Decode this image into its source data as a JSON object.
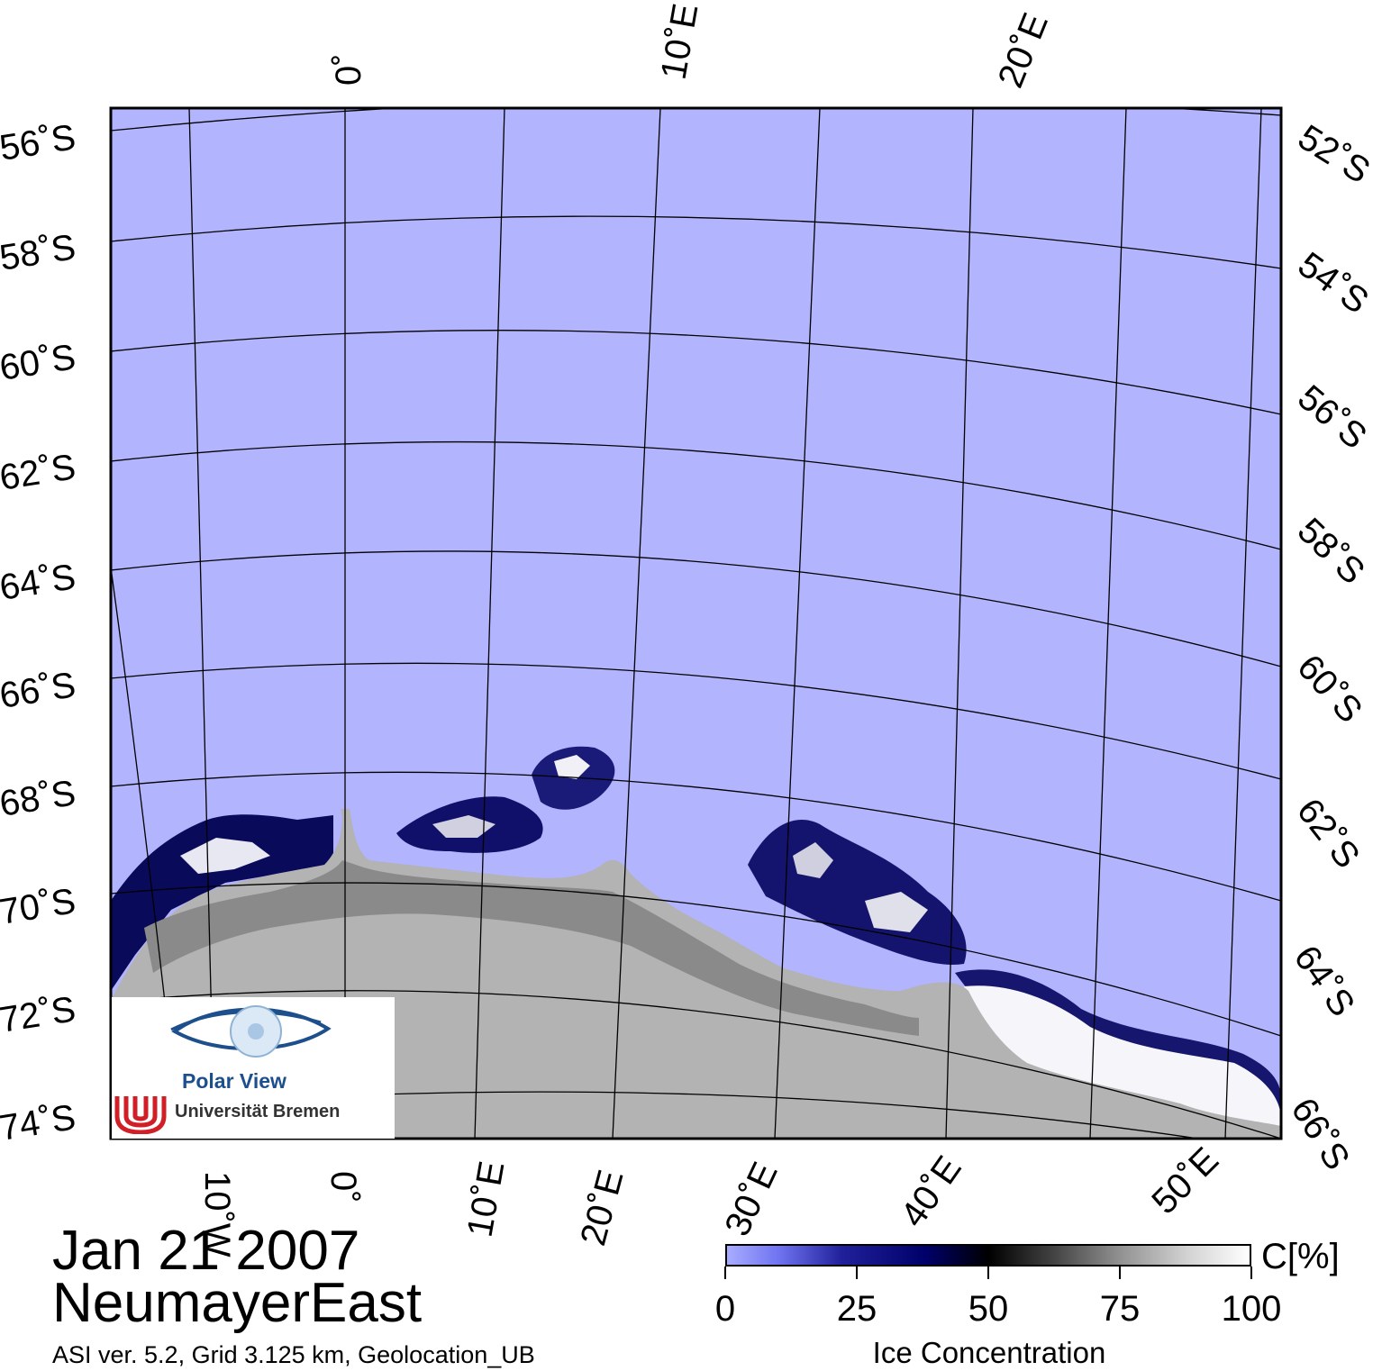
{
  "map": {
    "region": "NeumayerEast",
    "date": "Jan 21 2007",
    "info": "ASI ver. 5.2,  Grid 3.125 km, Geolocation_UB",
    "colors": {
      "open_water": "#b2b4fe",
      "continent_land": "#b3b3b3",
      "ice_shelf": "#8a8a8a",
      "graticule": "#000000"
    },
    "top_longitude_labels": [
      "0˚",
      "10˚E",
      "20˚E"
    ],
    "bottom_longitude_labels": [
      "10˚W",
      "0˚",
      "10˚E",
      "20˚E",
      "30˚E",
      "40˚E",
      "50˚E"
    ],
    "left_latitude_labels": [
      "56˚S",
      "58˚S",
      "60˚S",
      "62˚S",
      "64˚S",
      "66˚S",
      "68˚S",
      "70˚S",
      "72˚S",
      "74˚S"
    ],
    "right_latitude_labels": [
      "52˚S",
      "54˚S",
      "56˚S",
      "58˚S",
      "60˚S",
      "62˚S",
      "64˚S",
      "66˚S"
    ]
  },
  "colorbar": {
    "title": "Ice Concentration",
    "unit": "C[%]",
    "ticks": [
      "0",
      "25",
      "50",
      "75",
      "100"
    ],
    "range": [
      0,
      100
    ],
    "stops": [
      "#a8acff",
      "#00006a",
      "#000000",
      "#909090",
      "#ffffff"
    ]
  },
  "logo": {
    "polar_view": "Polar View",
    "university": "Universität Bremen"
  }
}
